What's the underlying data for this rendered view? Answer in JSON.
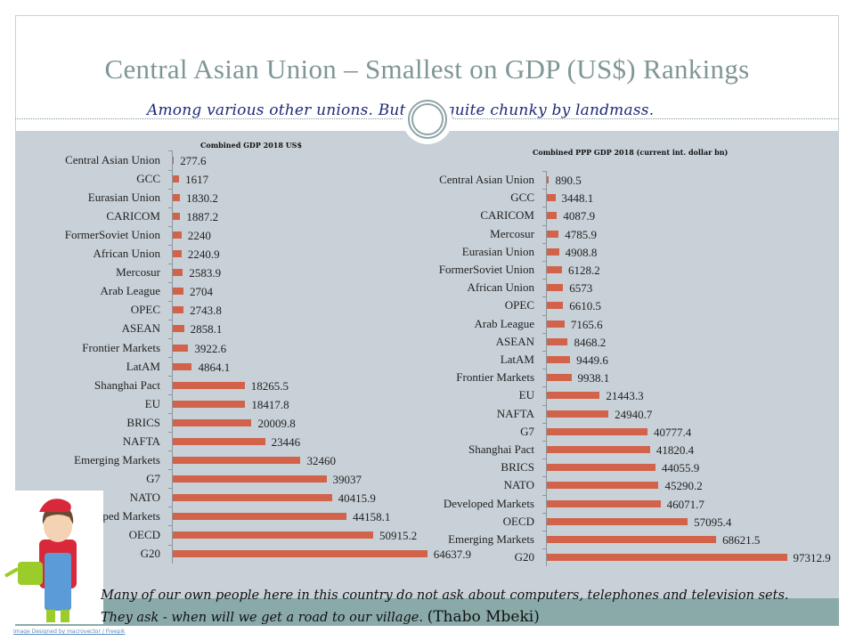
{
  "slide": {
    "title": "Central Asian Union – Smallest on GDP (US$) Rankings",
    "subtitle": "Among various other unions. But it is quite chunky by landmass.",
    "quote_line1": "Many of our own people here in this country do not ask about computers, telephones and television sets.",
    "quote_line2": "They ask - when will we get a road to our village.",
    "quote_author": "(Thabo Mbeki)",
    "image_credit": "Image Designed by macrovector / Freepik"
  },
  "colors": {
    "bar": "#d2634a",
    "panel": "#c8d1d7",
    "band": "#8aaaa9",
    "title": "#7f9696"
  },
  "chart_data": [
    {
      "type": "bar",
      "orientation": "horizontal",
      "title": "Combined GDP 2018  US$",
      "categories": [
        "Central Asian Union",
        "GCC",
        "Eurasian Union",
        "CARICOM",
        "FormerSoviet Union",
        "African Union",
        "Mercosur",
        "Arab League",
        "OPEC",
        "ASEAN",
        "Frontier Markets",
        "LatAM",
        "Shanghai Pact",
        "EU",
        "BRICS",
        "NAFTA",
        "Emerging Markets",
        "G7",
        "NATO",
        "Developed Markets",
        "OECD",
        "G20"
      ],
      "values": [
        277.6,
        1617,
        1830.2,
        1887.2,
        2240,
        2240.9,
        2583.9,
        2704,
        2743.8,
        2858.1,
        3922.6,
        4864.1,
        18265.5,
        18417.8,
        20009.8,
        23446,
        32460,
        39037,
        40415.9,
        44158.1,
        50915.2,
        64637.9
      ],
      "labels": [
        "277.6",
        "1617",
        "1830.2",
        "1887.2",
        "2240",
        "2240.9",
        "2583.9",
        "2704",
        "2743.8",
        "2858.1",
        "3922.6",
        "4864.1",
        "18265.5",
        "18417.8",
        "20009.8",
        "23446",
        "32460",
        "39037",
        "40415.9",
        "44158.1",
        "50915.2",
        "64637.9"
      ],
      "xlabel": "",
      "ylabel": ""
    },
    {
      "type": "bar",
      "orientation": "horizontal",
      "title": "Combined PPP GDP 2018  (current int. dollar bn)",
      "categories": [
        "Central Asian Union",
        "GCC",
        "CARICOM",
        "Mercosur",
        "Eurasian Union",
        "FormerSoviet Union",
        "African Union",
        "OPEC",
        "Arab League",
        "ASEAN",
        "LatAM",
        "Frontier Markets",
        "EU",
        "NAFTA",
        "G7",
        "Shanghai Pact",
        "BRICS",
        "NATO",
        "Developed Markets",
        "OECD",
        "Emerging Markets",
        "G20"
      ],
      "values": [
        890.5,
        3448.1,
        4087.9,
        4785.9,
        4908.8,
        6128.2,
        6573,
        6610.5,
        7165.6,
        8468.2,
        9449.6,
        9938.1,
        21443.3,
        24940.7,
        40777.4,
        41820.4,
        44055.9,
        45290.2,
        46071.7,
        57095.4,
        68621.5,
        97312.9
      ],
      "labels": [
        "890.5",
        "3448.1",
        "4087.9",
        "4785.9",
        "4908.8",
        "6128.2",
        "6573",
        "6610.5",
        "7165.6",
        "8468.2",
        "9449.6",
        "9938.1",
        "21443.3",
        "24940.7",
        "40777.4",
        "41820.4",
        "44055.9",
        "45290.2",
        "46071.7",
        "57095.4",
        "68621.5",
        "97312.9"
      ],
      "xlabel": "",
      "ylabel": ""
    }
  ]
}
